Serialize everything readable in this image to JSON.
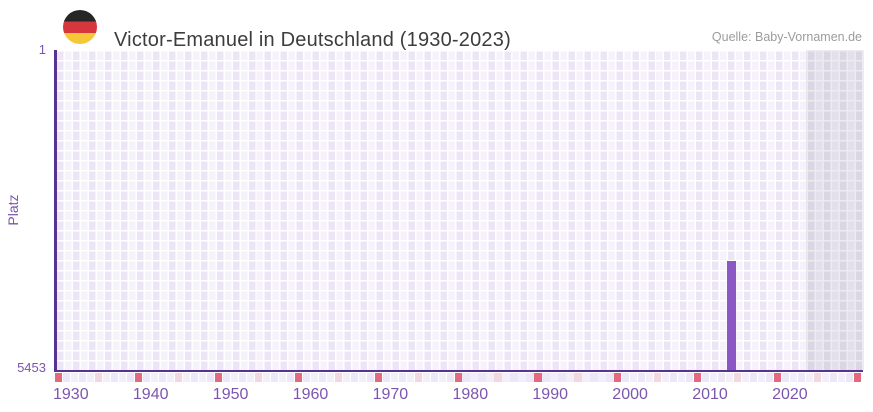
{
  "header": {
    "flag_icon": "german-flag",
    "title": "Victor-Emanuel in Deutschland (1930-2023)",
    "source": "Quelle: Baby-Vornamen.de"
  },
  "chart_data": {
    "type": "bar",
    "title": "Victor-Emanuel in Deutschland (1930-2023)",
    "xlabel": "",
    "ylabel": "Platz",
    "y_axis": {
      "inverted": true,
      "best": 1,
      "worst": 5453,
      "tick_labels": [
        "1",
        "5453"
      ]
    },
    "x_axis": {
      "min": 1930,
      "max": 2031,
      "tick_labels": [
        1930,
        1940,
        1950,
        1960,
        1970,
        1980,
        1990,
        2000,
        2010,
        2020
      ]
    },
    "data_range": {
      "from": 1930,
      "to": 2023
    },
    "future_start": 2024,
    "series": [
      {
        "name": "Platz",
        "points": [
          {
            "year": 2014,
            "rank": 3600
          }
        ]
      }
    ],
    "decade_marks": [
      1930,
      1940,
      1950,
      1960,
      1970,
      1980,
      1990,
      2000,
      2010,
      2020,
      2030
    ],
    "half_decade_marks": [
      1935,
      1945,
      1955,
      1965,
      1975,
      1985,
      1995,
      2005,
      2015,
      2025
    ],
    "legend": null,
    "grid": true,
    "colors": {
      "bar": "#8a57c5",
      "axis_line": "#563390",
      "axis_label": "#7d55ad",
      "grid_light": "#f5f2fb",
      "grid_dark": "#ebe5f5",
      "decade_mark": "#e2697e",
      "half_decade_mark": "#f3d7de",
      "strip_even": "#f3effa",
      "strip_odd": "#ece7f6",
      "title_text": "#3d3d3d",
      "source_text": "#9c9c9c"
    }
  }
}
